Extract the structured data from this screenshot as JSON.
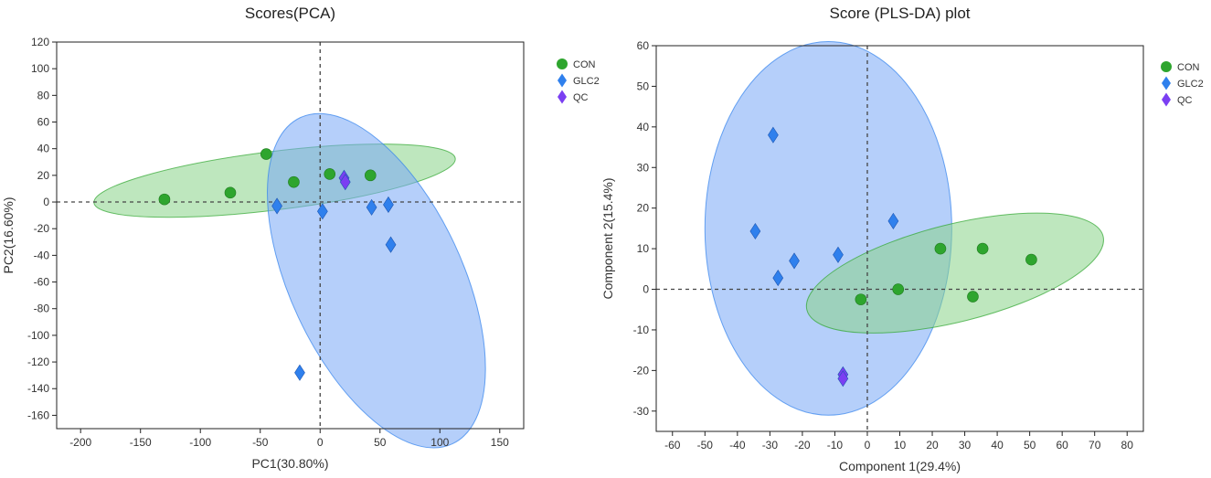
{
  "colors": {
    "CON": "#2ea52e",
    "GLC2": "#2f80ed",
    "QC": "#7b3ff2",
    "CON_ellipse": "#88d488",
    "GLC2_ellipse": "#78a8f5"
  },
  "chart_data": [
    {
      "type": "scatter",
      "title": "Scores(PCA)",
      "xlabel": "PC1(30.80%)",
      "ylabel": "PC2(16.60%)",
      "xlim": [
        -220,
        170
      ],
      "ylim": [
        -170,
        120
      ],
      "xticks": [
        -200,
        -150,
        -100,
        -50,
        0,
        50,
        100,
        150
      ],
      "yticks": [
        120,
        100,
        80,
        60,
        40,
        20,
        0,
        -20,
        -40,
        -60,
        -80,
        -100,
        -120,
        -140,
        -160
      ],
      "legend": [
        "CON",
        "GLC2",
        "QC"
      ],
      "series": [
        {
          "name": "CON",
          "marker": "circle",
          "points": [
            [
              -130,
              2
            ],
            [
              -75,
              7
            ],
            [
              -45,
              36
            ],
            [
              -22,
              15
            ],
            [
              8,
              21
            ],
            [
              42,
              20
            ]
          ]
        },
        {
          "name": "GLC2",
          "marker": "diamond",
          "points": [
            [
              -36,
              -3
            ],
            [
              2,
              -7
            ],
            [
              43,
              -4
            ],
            [
              57,
              -2
            ],
            [
              59,
              -32
            ],
            [
              -17,
              -128
            ]
          ]
        },
        {
          "name": "QC",
          "marker": "diamond",
          "points": [
            [
              20,
              18
            ],
            [
              21,
              15
            ]
          ]
        }
      ],
      "ellipses": [
        {
          "group": "CON",
          "cx": -38,
          "cy": 16,
          "rx": 152,
          "ry": 22,
          "angle_deg": 7
        },
        {
          "group": "GLC2",
          "cx": 47,
          "cy": -59,
          "rx": 72,
          "ry": 135,
          "angle_deg": 25
        }
      ]
    },
    {
      "type": "scatter",
      "title": "Score (PLS-DA) plot",
      "xlabel": "Component 1(29.4%)",
      "ylabel": "Component 2(15.4%)",
      "xlim": [
        -65,
        85
      ],
      "ylim": [
        -35,
        60
      ],
      "xticks": [
        -60,
        -50,
        -40,
        -30,
        -20,
        -10,
        0,
        10,
        20,
        30,
        40,
        50,
        60,
        70,
        80
      ],
      "yticks": [
        60,
        50,
        40,
        30,
        20,
        10,
        0,
        -10,
        -20,
        -30
      ],
      "legend": [
        "CON",
        "GLC2",
        "QC"
      ],
      "series": [
        {
          "name": "CON",
          "marker": "circle",
          "points": [
            [
              -2,
              -2.5
            ],
            [
              9.5,
              0
            ],
            [
              22.5,
              10
            ],
            [
              35.5,
              10
            ],
            [
              50.5,
              7.3
            ],
            [
              32.5,
              -1.8
            ]
          ]
        },
        {
          "name": "GLC2",
          "marker": "diamond",
          "points": [
            [
              -29,
              38
            ],
            [
              -34.5,
              14.3
            ],
            [
              -27.5,
              2.8
            ],
            [
              -22.5,
              7
            ],
            [
              -9,
              8.5
            ],
            [
              8,
              16.8
            ]
          ]
        },
        {
          "name": "QC",
          "marker": "diamond",
          "points": [
            [
              -7.5,
              -21
            ],
            [
              -7.5,
              -22
            ]
          ]
        }
      ],
      "ellipses": [
        {
          "group": "GLC2",
          "cx": -12,
          "cy": 15,
          "rx": 38,
          "ry": 46,
          "angle_deg": 0
        },
        {
          "group": "CON",
          "cx": 27,
          "cy": 4,
          "rx": 47,
          "ry": 12,
          "angle_deg": 14
        }
      ]
    }
  ]
}
